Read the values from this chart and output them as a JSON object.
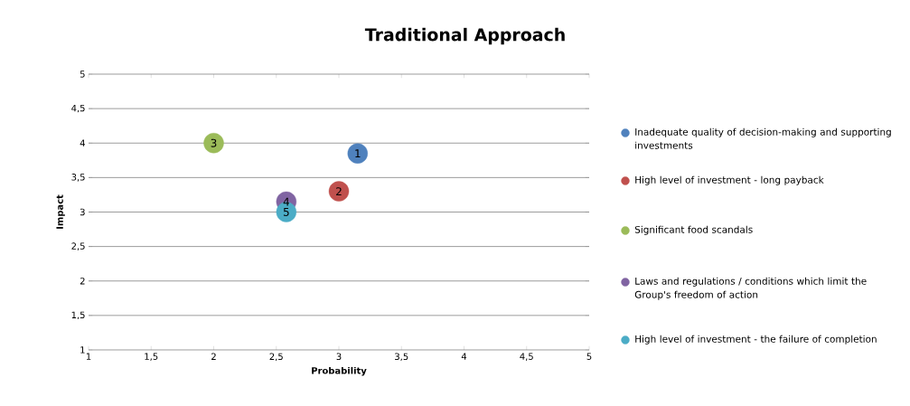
{
  "chart_data": {
    "type": "scatter",
    "title": "Traditional Approach",
    "xlabel": "Probability",
    "ylabel": "Impact",
    "xlim": [
      1,
      5
    ],
    "ylim": [
      1,
      5
    ],
    "xticks": [
      1,
      {
        "value": 1.5,
        "label": "1,5"
      },
      2,
      {
        "value": 2.5,
        "label": "2,5"
      },
      3,
      {
        "value": 3.5,
        "label": "3,5"
      },
      4,
      {
        "value": 4.5,
        "label": "4,5"
      },
      5
    ],
    "yticks": [
      1,
      {
        "value": 1.5,
        "label": "1,5"
      },
      2,
      {
        "value": 2.5,
        "label": "2,5"
      },
      3,
      {
        "value": 3.5,
        "label": "3,5"
      },
      4,
      {
        "value": 4.5,
        "label": "4,5"
      },
      5
    ],
    "annotations": [
      {
        "text": "1",
        "x": 3.15,
        "y": 3.85
      },
      {
        "text": "2",
        "x": 3.0,
        "y": 3.3
      },
      {
        "text": "3",
        "x": 2.0,
        "y": 4.0
      },
      {
        "text": "4",
        "x": 2.58,
        "y": 3.15
      },
      {
        "text": "5",
        "x": 2.58,
        "y": 3.0
      }
    ],
    "grid": "y",
    "legend": "right",
    "marker": "circle",
    "series": [
      {
        "name": "Inadequate quality of decision-making and supporting investments",
        "color": "#4f81bd",
        "x": [
          3.15
        ],
        "values": [
          3.85
        ]
      },
      {
        "name": "High level of investment - long payback",
        "color": "#c0504d",
        "x": [
          3.0
        ],
        "values": [
          3.3
        ]
      },
      {
        "name": "Significant food scandals",
        "color": "#9bbb59",
        "x": [
          2.0
        ],
        "values": [
          4.0
        ]
      },
      {
        "name": "Laws and regulations / conditions which limit the Group's freedom of action",
        "color": "#8064a2",
        "x": [
          2.58
        ],
        "values": [
          3.15
        ]
      },
      {
        "name": "High level of investment - the failure of completion",
        "color": "#4bacc6",
        "x": [
          2.58
        ],
        "values": [
          3.0
        ]
      }
    ]
  }
}
